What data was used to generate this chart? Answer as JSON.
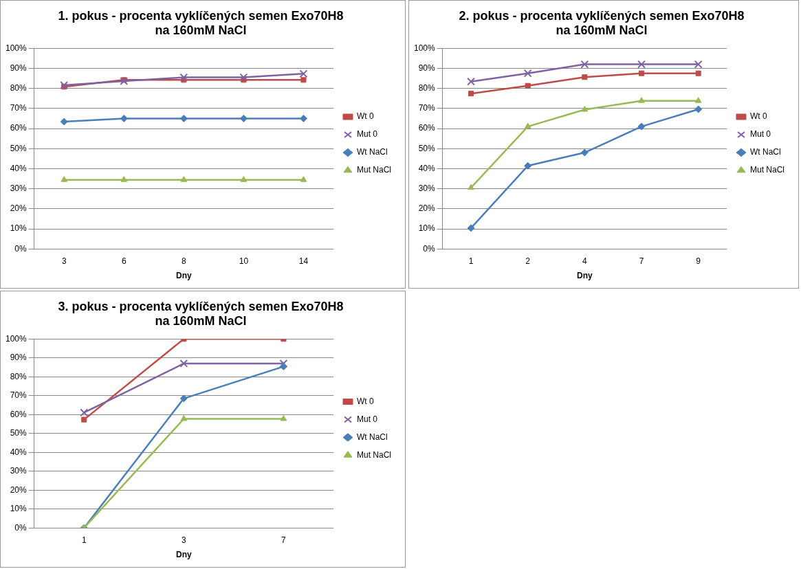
{
  "chart_data": [
    {
      "type": "line",
      "title": "1. pokus - procenta vyklíčených semen Exo70H8\nna 160mM NaCl",
      "xlabel": "Dny",
      "categories": [
        "3",
        "6",
        "8",
        "10",
        "14"
      ],
      "ylim": [
        0,
        100
      ],
      "yticks": [
        {
          "value": 0,
          "label": "0%"
        },
        {
          "value": 10,
          "label": "10%"
        },
        {
          "value": 20,
          "label": "20%"
        },
        {
          "value": 30,
          "label": "30%"
        },
        {
          "value": 40,
          "label": "40%"
        },
        {
          "value": 50,
          "label": "50%"
        },
        {
          "value": 60,
          "label": "60%"
        },
        {
          "value": 70,
          "label": "70%"
        },
        {
          "value": 80,
          "label": "80%"
        },
        {
          "value": 90,
          "label": "90%"
        },
        {
          "value": 100,
          "label": "100%"
        }
      ],
      "grid": "y",
      "legend": "right",
      "series": [
        {
          "name": "Wt 0",
          "color": "#be4b48",
          "marker": "square",
          "values": [
            80.8,
            84.2,
            84.2,
            84.2,
            84.2
          ]
        },
        {
          "name": "Mut 0",
          "color": "#7e62a1",
          "marker": "cross",
          "values": [
            81.6,
            83.6,
            85.5,
            85.5,
            87.3
          ]
        },
        {
          "name": "Wt NaCl",
          "color": "#4a7ebb",
          "marker": "diamond",
          "values": [
            63.4,
            65,
            65,
            65,
            65
          ]
        },
        {
          "name": "Mut NaCl",
          "color": "#98b954",
          "marker": "triangle",
          "values": [
            34.4,
            34.4,
            34.4,
            34.4,
            34.4
          ]
        }
      ]
    },
    {
      "type": "line",
      "title": "2. pokus - procenta vyklíčených semen Exo70H8\nna 160mM NaCl",
      "xlabel": "Dny",
      "categories": [
        "1",
        "2",
        "4",
        "7",
        "9"
      ],
      "ylim": [
        0,
        100
      ],
      "yticks": [
        {
          "value": 0,
          "label": "0%"
        },
        {
          "value": 10,
          "label": "10%"
        },
        {
          "value": 20,
          "label": "20%"
        },
        {
          "value": 30,
          "label": "30%"
        },
        {
          "value": 40,
          "label": "40%"
        },
        {
          "value": 50,
          "label": "50%"
        },
        {
          "value": 60,
          "label": "60%"
        },
        {
          "value": 70,
          "label": "70%"
        },
        {
          "value": 80,
          "label": "80%"
        },
        {
          "value": 90,
          "label": "90%"
        },
        {
          "value": 100,
          "label": "100%"
        }
      ],
      "grid": "y",
      "legend": "right",
      "series": [
        {
          "name": "Wt 0",
          "color": "#be4b48",
          "marker": "square",
          "values": [
            77.4,
            81.3,
            85.6,
            87.5,
            87.5
          ]
        },
        {
          "name": "Mut 0",
          "color": "#7e62a1",
          "marker": "cross",
          "values": [
            83.4,
            87.5,
            92,
            92,
            92
          ]
        },
        {
          "name": "Wt NaCl",
          "color": "#4a7ebb",
          "marker": "diamond",
          "values": [
            10.4,
            41.4,
            48,
            61,
            69.6
          ]
        },
        {
          "name": "Mut NaCl",
          "color": "#98b954",
          "marker": "triangle",
          "values": [
            30.5,
            61,
            69.4,
            73.8,
            73.8
          ]
        }
      ]
    },
    {
      "type": "line",
      "title": "3. pokus - procenta vyklíčených semen Exo70H8\nna 160mM NaCl",
      "xlabel": "Dny",
      "categories": [
        "1",
        "3",
        "7"
      ],
      "ylim": [
        0,
        100
      ],
      "yticks": [
        {
          "value": 0,
          "label": "0%"
        },
        {
          "value": 10,
          "label": "10%"
        },
        {
          "value": 20,
          "label": "20%"
        },
        {
          "value": 30,
          "label": "30%"
        },
        {
          "value": 40,
          "label": "40%"
        },
        {
          "value": 50,
          "label": "50%"
        },
        {
          "value": 60,
          "label": "60%"
        },
        {
          "value": 70,
          "label": "70%"
        },
        {
          "value": 80,
          "label": "80%"
        },
        {
          "value": 90,
          "label": "90%"
        },
        {
          "value": 100,
          "label": "100%"
        }
      ],
      "grid": "y",
      "legend": "right",
      "series": [
        {
          "name": "Wt 0",
          "color": "#be4b48",
          "marker": "square",
          "values": [
            57.3,
            100,
            100
          ]
        },
        {
          "name": "Mut 0",
          "color": "#7e62a1",
          "marker": "cross",
          "values": [
            61,
            87,
            87
          ]
        },
        {
          "name": "Wt NaCl",
          "color": "#4a7ebb",
          "marker": "diamond",
          "values": [
            0,
            68.5,
            85.4
          ]
        },
        {
          "name": "Mut NaCl",
          "color": "#98b954",
          "marker": "triangle",
          "values": [
            0,
            57.7,
            57.7
          ]
        }
      ]
    }
  ]
}
